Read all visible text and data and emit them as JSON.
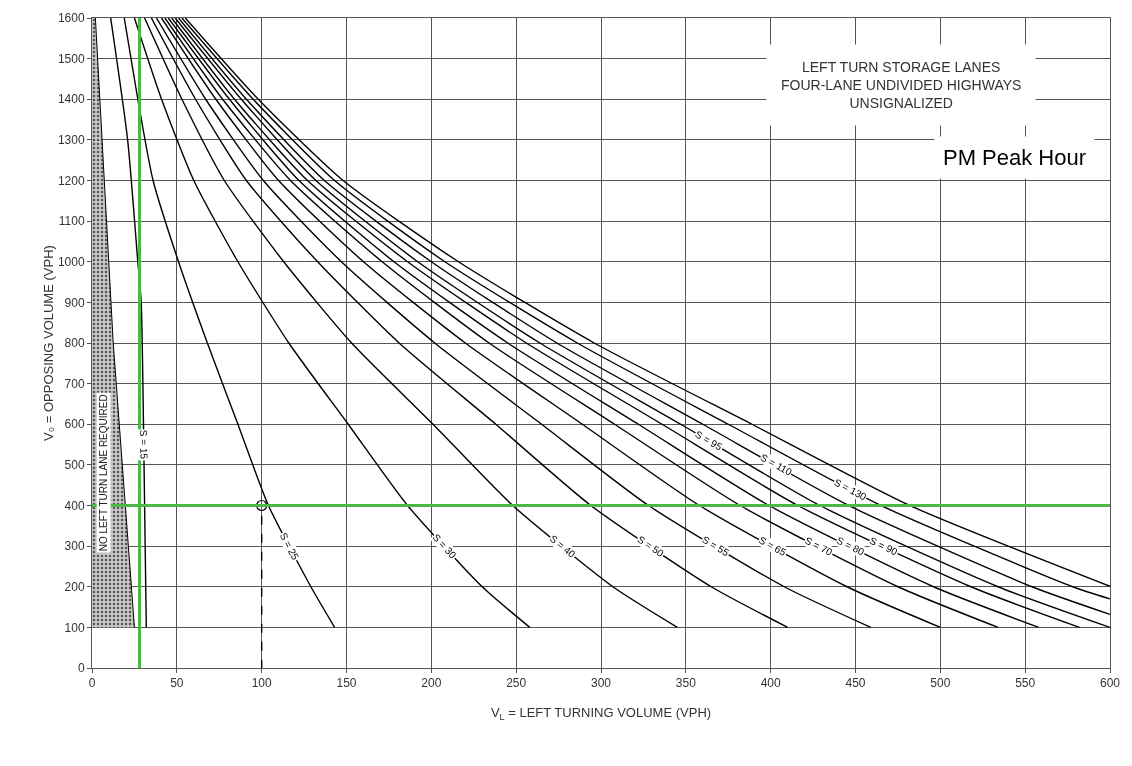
{
  "chart_data": {
    "type": "line",
    "title": "LEFT TURN STORAGE LANES\nFOUR-LANE UNDIVIDED HIGHWAYS\nUNSIGNALIZED",
    "xlabel": "V$_{L}$ = LEFT TURNING VOLUME (VPH)",
    "ylabel": "V₀ = OPPOSING VOLUME (VPH)",
    "xlim": [
      0,
      600
    ],
    "ylim": [
      0,
      1600
    ],
    "xticks": [
      0,
      50,
      100,
      150,
      200,
      250,
      300,
      350,
      400,
      450,
      500,
      550,
      600
    ],
    "yticks": [
      0,
      100,
      200,
      300,
      400,
      500,
      600,
      700,
      800,
      900,
      1000,
      1100,
      1200,
      1300,
      1400,
      1500,
      1600
    ],
    "grid": true,
    "annotations": [
      "PM Peak Hour",
      "NO LEFT TURN LANE REQUIRED"
    ],
    "ref_lines": [
      {
        "axis": "x",
        "value": 28,
        "color": "#4cb848"
      },
      {
        "axis": "y",
        "value": 400,
        "color": "#4cb848"
      }
    ],
    "series": [
      {
        "type": "area",
        "color": "#c8c8c8",
        "x": [
          2,
          12.5,
          25
        ],
        "values": [
          1600,
          800,
          100
        ]
      },
      {
        "name": "S = 15",
        "color": "#000000",
        "x": [
          11,
          21,
          27,
          29,
          30,
          31,
          32
        ],
        "values": [
          1600,
          1300,
          1000,
          900,
          700,
          400,
          100
        ]
      },
      {
        "name": "S = 25",
        "color": "#000000",
        "x": [
          19,
          27,
          36,
          51,
          68,
          86,
          104,
          129,
          143
        ],
        "values": [
          1600,
          1400,
          1200,
          1000,
          800,
          600,
          400,
          200,
          100
        ]
      },
      {
        "name": "S = 30",
        "color": "#000000",
        "x": [
          25,
          41,
          60,
          86,
          116,
          151,
          186,
          230,
          258
        ],
        "values": [
          1600,
          1400,
          1200,
          1000,
          800,
          600,
          400,
          200,
          100
        ]
      },
      {
        "name": "S = 40",
        "color": "#000000",
        "x": [
          31,
          53,
          78,
          113,
          153,
          201,
          248,
          307,
          345
        ],
        "values": [
          1600,
          1400,
          1200,
          1000,
          800,
          600,
          400,
          200,
          100
        ]
      },
      {
        "name": "S = 50",
        "color": "#000000",
        "x": [
          35,
          61,
          91,
          133,
          181,
          238,
          294,
          365,
          410
        ],
        "values": [
          1600,
          1400,
          1200,
          1000,
          800,
          600,
          400,
          200,
          100
        ]
      },
      {
        "name": "S = 55",
        "color": "#000000",
        "x": [
          38,
          67,
          101,
          147,
          202,
          265,
          328,
          408,
          459
        ],
        "values": [
          1600,
          1400,
          1200,
          1000,
          800,
          600,
          400,
          200,
          100
        ]
      },
      {
        "name": "S = 65",
        "color": "#000000",
        "x": [
          41,
          73,
          110,
          160,
          220,
          289,
          358,
          445,
          500
        ],
        "values": [
          1600,
          1400,
          1200,
          1000,
          800,
          600,
          400,
          200,
          100
        ]
      },
      {
        "name": "S = 70",
        "color": "#000000",
        "x": [
          43,
          77,
          117,
          171,
          234,
          308,
          382,
          475,
          534
        ],
        "values": [
          1600,
          1400,
          1200,
          1000,
          800,
          600,
          400,
          200,
          100
        ]
      },
      {
        "name": "S = 80",
        "color": "#000000",
        "x": [
          45,
          81,
          122,
          178,
          245,
          322,
          399,
          496,
          558
        ],
        "values": [
          1600,
          1400,
          1200,
          1000,
          800,
          600,
          400,
          200,
          100
        ]
      },
      {
        "name": "S = 90",
        "color": "#000000",
        "x": [
          47,
          84,
          127,
          186,
          256,
          336,
          416,
          518,
          582
        ],
        "values": [
          1600,
          1400,
          1200,
          1000,
          800,
          600,
          400,
          200,
          100
        ]
      },
      {
        "name": "S = 95",
        "color": "#000000",
        "x": [
          49,
          88,
          132,
          192,
          264,
          347,
          429,
          534,
          600
        ],
        "values": [
          1600,
          1400,
          1200,
          1000,
          800,
          600,
          400,
          200,
          100
        ]
      },
      {
        "name": "S = 110",
        "color": "#000000",
        "x": [
          51,
          91,
          137,
          200,
          274,
          360,
          446,
          554,
          600
        ],
        "values": [
          1600,
          1400,
          1200,
          1000,
          800,
          600,
          400,
          200,
          132
        ]
      },
      {
        "name": "S = 130",
        "color": "#000000",
        "x": [
          53,
          95,
          143,
          208,
          286,
          375,
          465,
          578,
          600
        ],
        "values": [
          1600,
          1400,
          1200,
          1000,
          800,
          600,
          400,
          200,
          170
        ]
      },
      {
        "color": "#000000",
        "x": [
          55,
          98,
          148,
          216,
          296,
          389,
          482,
          600
        ],
        "values": [
          1600,
          1400,
          1200,
          1000,
          800,
          600,
          400,
          201
        ]
      },
      {
        "color": "#000000",
        "line_style": "dashed",
        "x": [
          0,
          100,
          100
        ],
        "values": [
          400,
          400,
          0
        ]
      },
      {
        "type": "scatter",
        "marker": "circle",
        "color": "#000000",
        "x": [
          100
        ],
        "values": [
          400
        ]
      }
    ]
  }
}
